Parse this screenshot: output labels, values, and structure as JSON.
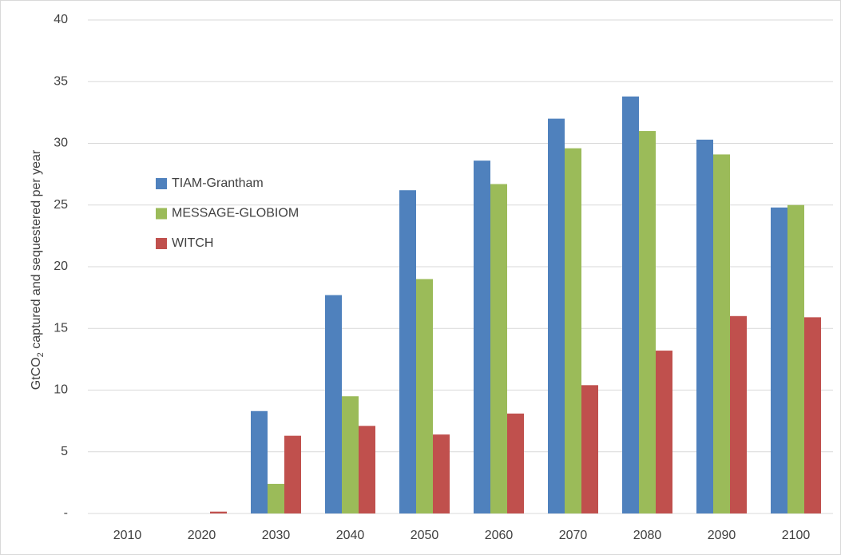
{
  "chart_data": {
    "type": "bar",
    "y_label": {
      "prefix": "GtCO",
      "subscript": "2",
      "suffix": " captured and sequestered per year"
    },
    "categories": [
      "2010",
      "2020",
      "2030",
      "2040",
      "2050",
      "2060",
      "2070",
      "2080",
      "2090",
      "2100"
    ],
    "series": [
      {
        "name": "TIAM-Grantham",
        "color": "#4f81bd",
        "values": [
          0,
          0,
          8.3,
          17.7,
          26.2,
          28.6,
          32.0,
          33.8,
          30.3,
          24.8
        ]
      },
      {
        "name": "MESSAGE-GLOBIOM",
        "color": "#9bbb59",
        "values": [
          0,
          0,
          2.4,
          9.5,
          19.0,
          26.7,
          29.6,
          31.0,
          29.1,
          25.0
        ]
      },
      {
        "name": "WITCH",
        "color": "#c0504d",
        "values": [
          0,
          0.15,
          6.3,
          7.1,
          6.4,
          8.1,
          10.4,
          13.2,
          16.0,
          15.9
        ]
      }
    ],
    "ylim": [
      0,
      40
    ],
    "yticks": [
      {
        "value": 0,
        "label": "-"
      },
      5,
      10,
      15,
      20,
      25,
      30,
      35,
      40
    ],
    "grid": true
  }
}
